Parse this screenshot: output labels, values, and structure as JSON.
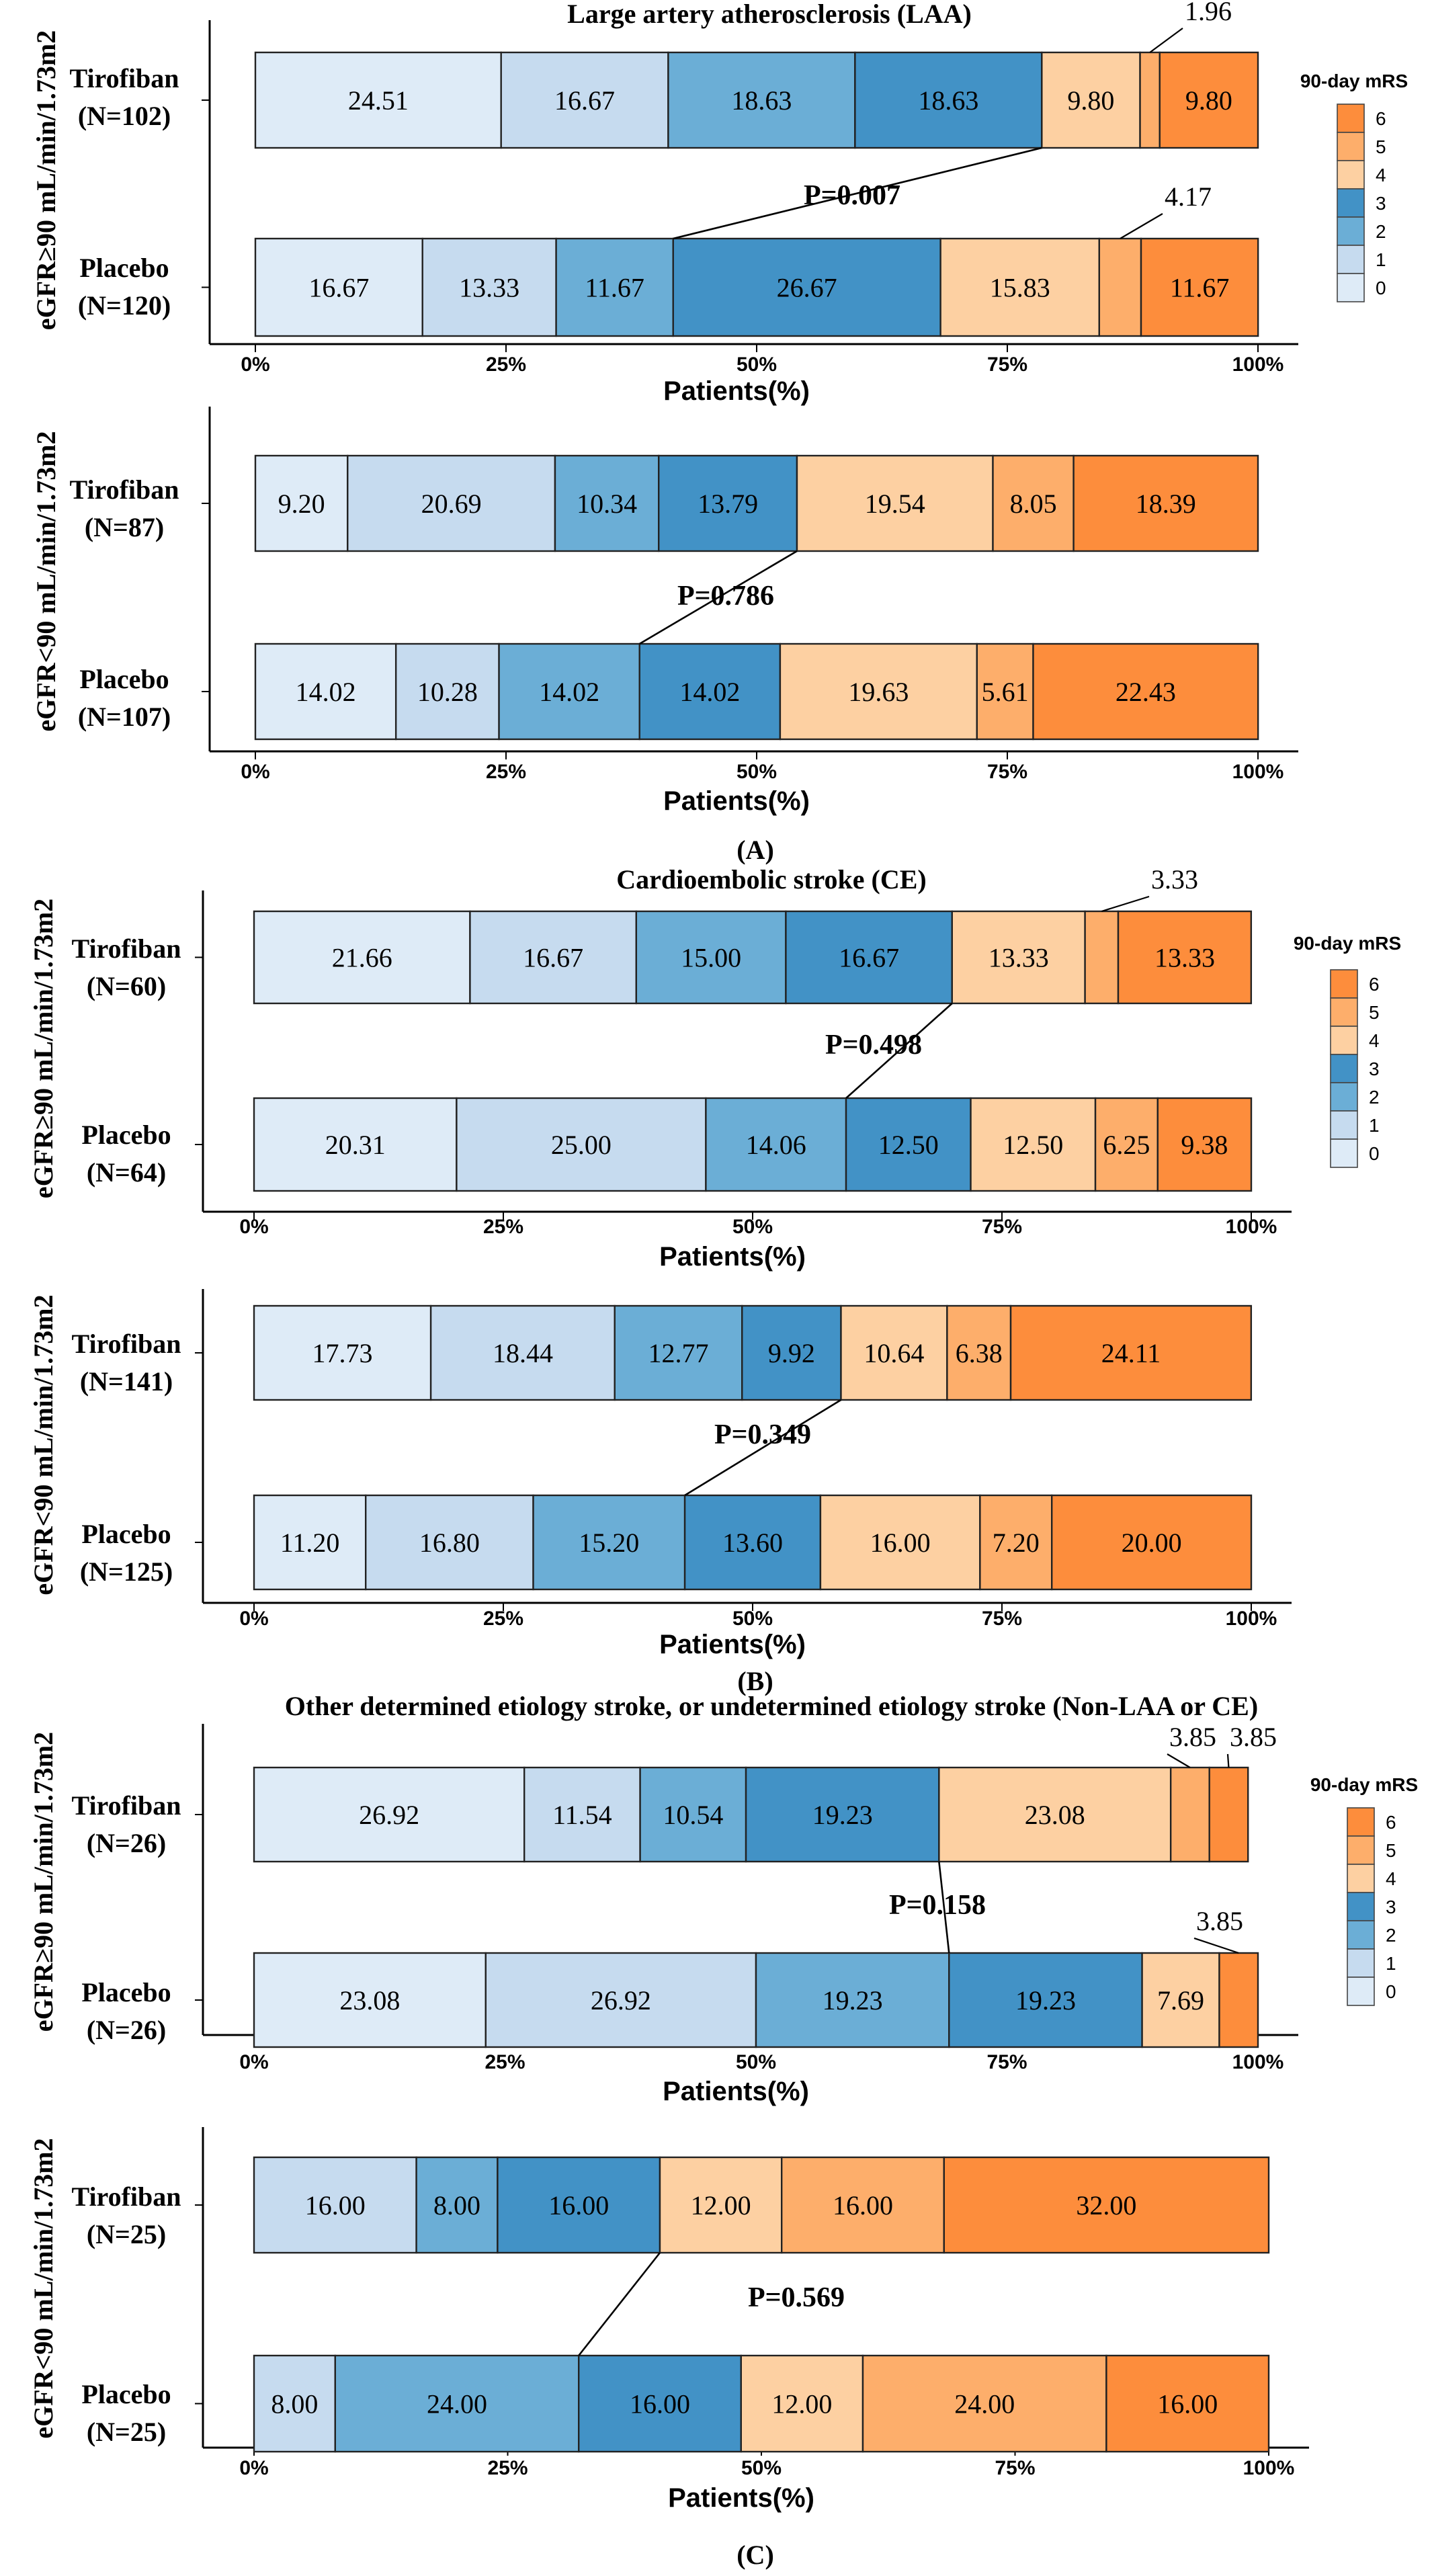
{
  "legend_title": "90-day mRS",
  "x_axis_label": "Patients(%)",
  "x_ticks": [
    "0%",
    "25%",
    "50%",
    "75%",
    "100%"
  ],
  "colors": {
    "0": "#deebf7",
    "1": "#c6dbef",
    "2": "#6baed6",
    "3": "#4292c6",
    "4": "#fdd0a2",
    "5": "#fdae6b",
    "6": "#fd8d3c"
  },
  "chart_data": [
    {
      "type": "bar",
      "orientation": "horizontal-stacked-100",
      "panel": "(A)",
      "title": "Large artery atherosclerosis (LAA)",
      "ylabel": "eGFR≥90 mL/min/1.73m2",
      "xlabel": "Patients(%)",
      "categories": [
        "0",
        "1",
        "2",
        "3",
        "4",
        "5",
        "6"
      ],
      "p_value": "P=0.007",
      "groups": [
        {
          "label": "Tirofiban",
          "n": "(N=102)",
          "values": [
            24.51,
            16.67,
            18.63,
            18.63,
            9.8,
            1.96,
            9.8
          ],
          "labels": [
            "24.51",
            "16.67",
            "18.63",
            "18.63",
            "9.80",
            "1.96",
            "9.80"
          ]
        },
        {
          "label": "Placebo",
          "n": "(N=120)",
          "values": [
            16.67,
            13.33,
            11.67,
            26.67,
            15.83,
            4.17,
            11.67
          ],
          "labels": [
            "16.67",
            "13.33",
            "11.67",
            "26.67",
            "15.83",
            "4.17",
            "11.67"
          ]
        }
      ]
    },
    {
      "type": "bar",
      "orientation": "horizontal-stacked-100",
      "panel": "(A)",
      "title": "",
      "ylabel": "eGFR<90 mL/min/1.73m2",
      "xlabel": "Patients(%)",
      "categories": [
        "0",
        "1",
        "2",
        "3",
        "4",
        "5",
        "6"
      ],
      "p_value": "P=0.786",
      "groups": [
        {
          "label": "Tirofiban",
          "n": "(N=87)",
          "values": [
            9.2,
            20.69,
            10.34,
            13.79,
            19.54,
            8.05,
            18.39
          ],
          "labels": [
            "9.20",
            "20.69",
            "10.34",
            "13.79",
            "19.54",
            "8.05",
            "18.39"
          ]
        },
        {
          "label": "Placebo",
          "n": "(N=107)",
          "values": [
            14.02,
            10.28,
            14.02,
            14.02,
            19.63,
            5.61,
            22.43
          ],
          "labels": [
            "14.02",
            "10.28",
            "14.02",
            "14.02",
            "19.63",
            "5.61",
            "22.43"
          ]
        }
      ]
    },
    {
      "type": "bar",
      "orientation": "horizontal-stacked-100",
      "panel": "(B)",
      "title": "Cardioembolic stroke (CE)",
      "ylabel": "eGFR≥90 mL/min/1.73m2",
      "xlabel": "Patients(%)",
      "categories": [
        "0",
        "1",
        "2",
        "3",
        "4",
        "5",
        "6"
      ],
      "p_value": "P=0.498",
      "groups": [
        {
          "label": "Tirofiban",
          "n": "(N=60)",
          "values": [
            21.66,
            16.67,
            15.0,
            16.67,
            13.33,
            3.33,
            13.33
          ],
          "labels": [
            "21.66",
            "16.67",
            "15.00",
            "16.67",
            "13.33",
            "3.33",
            "13.33"
          ]
        },
        {
          "label": "Placebo",
          "n": "(N=64)",
          "values": [
            20.31,
            25.0,
            14.06,
            12.5,
            12.5,
            6.25,
            9.38
          ],
          "labels": [
            "20.31",
            "25.00",
            "14.06",
            "12.50",
            "12.50",
            "6.25",
            "9.38"
          ]
        }
      ]
    },
    {
      "type": "bar",
      "orientation": "horizontal-stacked-100",
      "panel": "(B)",
      "title": "",
      "ylabel": "eGFR<90 mL/min/1.73m2",
      "xlabel": "Patients(%)",
      "categories": [
        "0",
        "1",
        "2",
        "3",
        "4",
        "5",
        "6"
      ],
      "p_value": "P=0.349",
      "groups": [
        {
          "label": "Tirofiban",
          "n": "(N=141)",
          "values": [
            17.73,
            18.44,
            12.77,
            9.92,
            10.64,
            6.38,
            24.11
          ],
          "labels": [
            "17.73",
            "18.44",
            "12.77",
            "9.92",
            "10.64",
            "6.38",
            "24.11"
          ]
        },
        {
          "label": "Placebo",
          "n": "(N=125)",
          "values": [
            11.2,
            16.8,
            15.2,
            13.6,
            16.0,
            7.2,
            20.0
          ],
          "labels": [
            "11.20",
            "16.80",
            "15.20",
            "13.60",
            "16.00",
            "7.20",
            "20.00"
          ]
        }
      ]
    },
    {
      "type": "bar",
      "orientation": "horizontal-stacked-100",
      "panel": "(C)",
      "title": "Other determined etiology stroke, or undetermined  etiology stroke (Non-LAA or CE)",
      "ylabel": "eGFR≥90 mL/min/1.73m2",
      "xlabel": "Patients(%)",
      "categories": [
        "0",
        "1",
        "2",
        "3",
        "4",
        "5",
        "6"
      ],
      "p_value": "P=0.158",
      "groups": [
        {
          "label": "Tirofiban",
          "n": "(N=26)",
          "values": [
            26.92,
            11.54,
            10.54,
            19.23,
            23.08,
            3.85,
            3.85
          ],
          "labels": [
            "26.92",
            "11.54",
            "10.54",
            "19.23",
            "23.08",
            "3.85",
            "3.85"
          ]
        },
        {
          "label": "Placebo",
          "n": "(N=26)",
          "values": [
            23.08,
            26.92,
            19.23,
            19.23,
            7.69,
            0,
            3.85
          ],
          "labels": [
            "23.08",
            "26.92",
            "19.23",
            "19.23",
            "7.69",
            "",
            "3.85"
          ]
        }
      ]
    },
    {
      "type": "bar",
      "orientation": "horizontal-stacked-100",
      "panel": "(C)",
      "title": "",
      "ylabel": "eGFR<90 mL/min/1.73m2",
      "xlabel": "Patients(%)",
      "categories": [
        "0",
        "1",
        "2",
        "3",
        "4",
        "5",
        "6"
      ],
      "p_value": "P=0.569",
      "groups": [
        {
          "label": "Tirofiban",
          "n": "(N=25)",
          "values": [
            0,
            16.0,
            8.0,
            16.0,
            12.0,
            16.0,
            32.0
          ],
          "labels": [
            "",
            "16.00",
            "8.00",
            "16.00",
            "12.00",
            "16.00",
            "32.00"
          ]
        },
        {
          "label": "Placebo",
          "n": "(N=25)",
          "values": [
            0,
            8.0,
            24.0,
            16.0,
            12.0,
            24.0,
            16.0
          ],
          "labels": [
            "",
            "8.00",
            "24.00",
            "16.00",
            "12.00",
            "24.00",
            "16.00"
          ]
        }
      ]
    }
  ]
}
